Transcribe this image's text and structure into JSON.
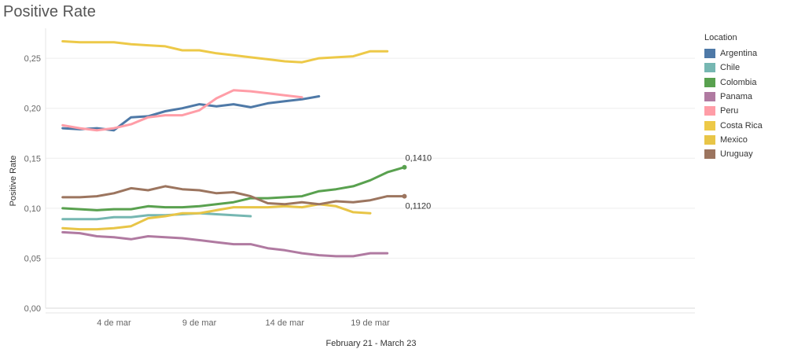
{
  "chart_data": {
    "type": "line",
    "title": "Positive Rate",
    "xlabel": "February 21 - March 23",
    "ylabel": "Positive Rate",
    "ylim": [
      0,
      0.28
    ],
    "yticks": [
      0,
      0.05,
      0.1,
      0.15,
      0.2,
      0.25
    ],
    "ytick_labels": [
      "0,00",
      "0,05",
      "0,10",
      "0,15",
      "0,20",
      "0,25"
    ],
    "xlim": [
      -1,
      37
    ],
    "x_tick_positions": [
      3,
      8,
      13,
      18
    ],
    "x_tick_labels": [
      "4 de mar",
      "9 de mar",
      "14 de mar",
      "19 de mar"
    ],
    "x": [
      0,
      1,
      2,
      3,
      4,
      5,
      6,
      7,
      8,
      9,
      10,
      11,
      12,
      13,
      14,
      15,
      16,
      17,
      18,
      19,
      20,
      21
    ],
    "grid": true,
    "legend_title": "Location",
    "legend_position": "right",
    "series": [
      {
        "name": "Argentina",
        "color": "#4e79a7",
        "values": [
          0.18,
          0.179,
          0.18,
          0.178,
          0.191,
          0.192,
          0.197,
          0.2,
          0.204,
          0.202,
          0.204,
          0.201,
          0.205,
          0.207,
          0.209,
          0.212,
          null,
          null,
          null,
          null,
          null,
          null
        ]
      },
      {
        "name": "Chile",
        "color": "#76b7b2",
        "values": [
          0.089,
          0.089,
          0.089,
          0.091,
          0.091,
          0.093,
          0.093,
          0.094,
          0.095,
          0.094,
          0.093,
          0.092,
          null,
          null,
          null,
          null,
          null,
          null,
          null,
          null,
          null,
          null
        ]
      },
      {
        "name": "Colombia",
        "color": "#59a14f",
        "values": [
          0.1,
          0.099,
          0.098,
          0.099,
          0.099,
          0.102,
          0.101,
          0.101,
          0.102,
          0.104,
          0.106,
          0.11,
          0.11,
          0.111,
          0.112,
          0.117,
          0.119,
          0.122,
          0.128,
          0.136,
          0.141,
          null
        ]
      },
      {
        "name": "Panama",
        "color": "#b07aa1",
        "values": [
          0.076,
          0.075,
          0.072,
          0.071,
          0.069,
          0.072,
          0.071,
          0.07,
          0.068,
          0.066,
          0.064,
          0.064,
          0.06,
          0.058,
          0.055,
          0.053,
          0.052,
          0.052,
          0.055,
          0.055,
          null,
          null
        ]
      },
      {
        "name": "Peru",
        "color": "#ff9da7",
        "values": [
          0.183,
          0.18,
          0.178,
          0.18,
          0.184,
          0.191,
          0.193,
          0.193,
          0.198,
          0.21,
          0.218,
          0.217,
          0.215,
          0.213,
          0.211,
          null,
          null,
          null,
          null,
          null,
          null,
          null
        ]
      },
      {
        "name": "Costa Rica",
        "color": "#edc948",
        "values": [
          0.267,
          0.266,
          0.266,
          0.266,
          0.264,
          0.263,
          0.262,
          0.258,
          0.258,
          0.255,
          0.253,
          0.251,
          0.249,
          0.247,
          0.246,
          0.25,
          0.251,
          0.252,
          0.257,
          0.257,
          null,
          null
        ]
      },
      {
        "name": "Mexico",
        "color": "#e8c547",
        "values": [
          0.08,
          0.079,
          0.079,
          0.08,
          0.082,
          0.09,
          0.092,
          0.095,
          0.095,
          0.098,
          0.101,
          0.101,
          0.101,
          0.102,
          0.101,
          0.104,
          0.102,
          0.096,
          0.095,
          null,
          null,
          null
        ]
      },
      {
        "name": "Uruguay",
        "color": "#9c755f",
        "values": [
          0.111,
          0.111,
          0.112,
          0.115,
          0.12,
          0.118,
          0.122,
          0.119,
          0.118,
          0.115,
          0.116,
          0.112,
          0.105,
          0.104,
          0.106,
          0.104,
          0.107,
          0.106,
          0.108,
          0.112,
          0.112,
          null
        ]
      }
    ],
    "annotations": [
      {
        "series": "Colombia",
        "x": 20,
        "y": 0.141,
        "text": "0,1410"
      },
      {
        "series": "Uruguay",
        "x": 20,
        "y": 0.112,
        "text": "0,1120"
      }
    ]
  }
}
